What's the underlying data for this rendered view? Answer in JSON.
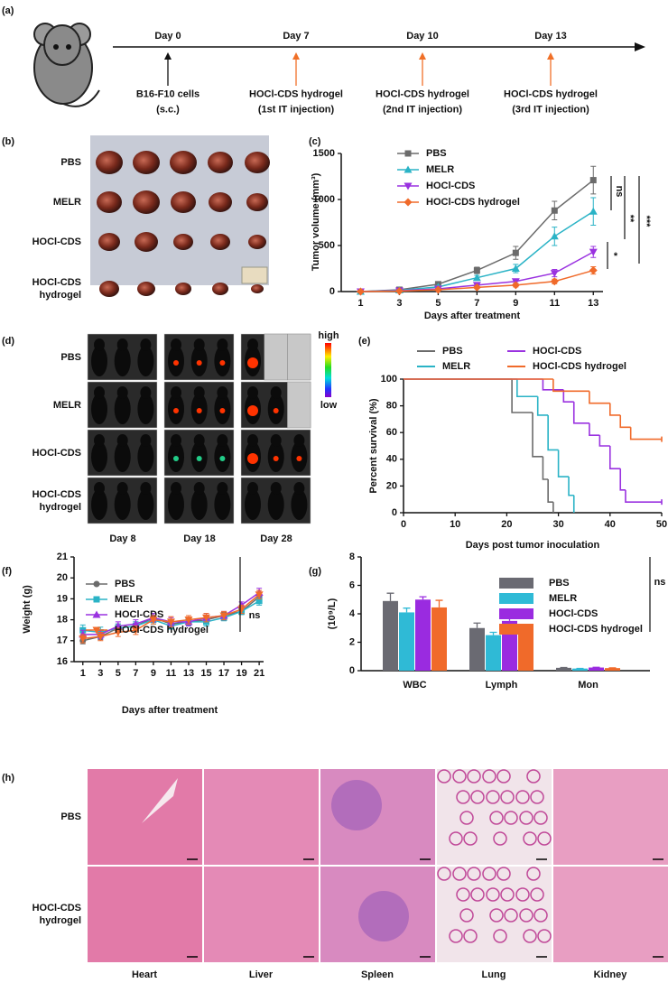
{
  "panel_labels": [
    "(a)",
    "(b)",
    "(c)",
    "(d)",
    "(e)",
    "(f)",
    "(g)",
    "(h)"
  ],
  "timeline": {
    "events": [
      {
        "day": "Day 0",
        "color": "#111111",
        "label": [
          "B16-F10 cells",
          "(s.c.)"
        ]
      },
      {
        "day": "Day 7",
        "color": "#f07028",
        "label": [
          "HOCl-CDS hydrogel",
          "(1st IT injection)"
        ]
      },
      {
        "day": "Day 10",
        "color": "#f07028",
        "label": [
          "HOCl-CDS hydrogel",
          "(2nd IT injection)"
        ]
      },
      {
        "day": "Day 13",
        "color": "#f07028",
        "label": [
          "HOCl-CDS hydrogel",
          "(3rd IT injection)"
        ]
      }
    ]
  },
  "tumor_photo": {
    "groups": [
      "PBS",
      "MELR",
      "HOCl-CDS",
      [
        "HOCl-CDS",
        "hydrogel"
      ]
    ]
  },
  "imaging": {
    "groups": [
      "PBS",
      "MELR",
      "HOCl-CDS",
      [
        "HOCl-CDS",
        "hydrogel"
      ]
    ],
    "days": [
      "Day 8",
      "Day 18",
      "Day 28"
    ],
    "colorbar": [
      "high",
      "low"
    ]
  },
  "histology": {
    "groups": [
      "PBS",
      [
        "HOCl-CDS",
        "hydrogel"
      ]
    ],
    "organs": [
      "Heart",
      "Liver",
      "Spleen",
      "Lung",
      "Kidney"
    ]
  },
  "chart_data": [
    {
      "type": "line",
      "xlabel": "Days after treatment",
      "ylabel": "Tumor volume (mm³)",
      "x": [
        1,
        3,
        5,
        7,
        9,
        11,
        13
      ],
      "xlim": [
        0,
        13.5
      ],
      "xticks": [
        1,
        3,
        5,
        7,
        9,
        11,
        13
      ],
      "ylim": [
        0,
        1500
      ],
      "yticks": [
        0,
        500,
        1000,
        1500
      ],
      "series": [
        {
          "name": "PBS",
          "color": "#6b6b6b",
          "marker": "square",
          "values": [
            0,
            20,
            80,
            230,
            420,
            880,
            1210
          ],
          "errors": [
            5,
            10,
            20,
            35,
            70,
            100,
            150
          ]
        },
        {
          "name": "MELR",
          "color": "#2ab3c6",
          "marker": "triangle",
          "values": [
            0,
            15,
            50,
            150,
            250,
            600,
            870
          ],
          "errors": [
            4,
            8,
            15,
            25,
            45,
            100,
            150
          ]
        },
        {
          "name": "HOCl-CDS",
          "color": "#9a32e0",
          "marker": "down",
          "values": [
            0,
            10,
            30,
            70,
            110,
            200,
            430
          ],
          "errors": [
            3,
            5,
            10,
            15,
            25,
            40,
            60
          ]
        },
        {
          "name": "HOCl-CDS hydrogel",
          "color": "#f06a2a",
          "marker": "diamond",
          "values": [
            0,
            5,
            20,
            45,
            70,
            110,
            230
          ],
          "errors": [
            2,
            4,
            8,
            12,
            20,
            25,
            40
          ]
        }
      ],
      "annotations": [
        "ns",
        "**",
        "***",
        "*"
      ]
    },
    {
      "type": "step",
      "xlabel": "Days post tumor inoculation",
      "ylabel": "Percent survival (%)",
      "xlim": [
        0,
        50
      ],
      "xticks": [
        0,
        10,
        20,
        30,
        40,
        50
      ],
      "ylim": [
        0,
        100
      ],
      "yticks": [
        0,
        20,
        40,
        60,
        80,
        100
      ],
      "series": [
        {
          "name": "PBS",
          "color": "#6b6b6b",
          "x": [
            0,
            21,
            25,
            27,
            28,
            29
          ],
          "values": [
            100,
            75,
            42,
            25,
            8,
            0
          ]
        },
        {
          "name": "MELR",
          "color": "#2ab3c6",
          "x": [
            0,
            22,
            26,
            28,
            30,
            32,
            33
          ],
          "values": [
            100,
            87,
            73,
            47,
            27,
            13,
            0
          ]
        },
        {
          "name": "HOCl-CDS",
          "color": "#9a32e0",
          "x": [
            0,
            27,
            31,
            33,
            36,
            38,
            40,
            42,
            43,
            50
          ],
          "values": [
            100,
            92,
            83,
            67,
            58,
            50,
            33,
            17,
            8,
            8
          ]
        },
        {
          "name": "HOCl-CDS hydrogel",
          "color": "#f06a2a",
          "x": [
            0,
            29,
            36,
            40,
            42,
            44,
            50
          ],
          "values": [
            100,
            91,
            82,
            73,
            64,
            55,
            55
          ]
        }
      ]
    },
    {
      "type": "line",
      "xlabel": "Days after treatment",
      "ylabel": "Weight (g)",
      "x": [
        1,
        3,
        5,
        7,
        9,
        11,
        13,
        15,
        17,
        19,
        21
      ],
      "xlim": [
        0,
        21.5
      ],
      "xticks": [
        1,
        3,
        5,
        7,
        9,
        11,
        13,
        15,
        17,
        19,
        21
      ],
      "ylim": [
        16,
        21
      ],
      "yticks": [
        16,
        17,
        18,
        19,
        20,
        21
      ],
      "series": [
        {
          "name": "PBS",
          "color": "#6b6b6b",
          "marker": "circle",
          "values": [
            17.0,
            17.2,
            17.6,
            17.7,
            18.1,
            17.8,
            17.9,
            18.0,
            18.2,
            18.4,
            19.1
          ],
          "errors": [
            0.15,
            0.15,
            0.2,
            0.2,
            0.2,
            0.2,
            0.15,
            0.2,
            0.15,
            0.15,
            0.2
          ]
        },
        {
          "name": "MELR",
          "color": "#2ab3c6",
          "marker": "square",
          "values": [
            17.5,
            17.4,
            17.6,
            17.7,
            18.0,
            17.7,
            17.9,
            17.9,
            18.1,
            18.4,
            18.9
          ],
          "errors": [
            0.25,
            0.25,
            0.2,
            0.2,
            0.2,
            0.15,
            0.15,
            0.2,
            0.15,
            0.15,
            0.2
          ]
        },
        {
          "name": "HOCl-CDS",
          "color": "#9a32e0",
          "marker": "triangle",
          "values": [
            17.3,
            17.3,
            17.7,
            17.8,
            18.1,
            17.9,
            17.9,
            18.1,
            18.2,
            18.7,
            19.3
          ],
          "errors": [
            0.2,
            0.2,
            0.2,
            0.2,
            0.2,
            0.2,
            0.2,
            0.2,
            0.2,
            0.15,
            0.2
          ]
        },
        {
          "name": "HOCl-CDS hydrogel",
          "color": "#f06a2a",
          "marker": "down",
          "values": [
            17.1,
            17.2,
            17.4,
            17.5,
            18.0,
            17.9,
            18.0,
            18.1,
            18.2,
            18.5,
            19.2
          ],
          "errors": [
            0.2,
            0.2,
            0.2,
            0.2,
            0.2,
            0.25,
            0.2,
            0.2,
            0.2,
            0.2,
            0.2
          ]
        }
      ],
      "annotations": [
        "ns"
      ]
    },
    {
      "type": "bar",
      "ylabel": "(10⁹/L)",
      "categories": [
        "WBC",
        "Lymph",
        "Mon"
      ],
      "ylim": [
        0,
        8
      ],
      "yticks": [
        0,
        2,
        4,
        6,
        8
      ],
      "series": [
        {
          "name": "PBS",
          "color": "#6a6a72",
          "values": [
            4.9,
            3.0,
            0.2
          ],
          "errors": [
            0.55,
            0.35,
            0.02
          ]
        },
        {
          "name": "MELR",
          "color": "#2fbad6",
          "values": [
            4.1,
            2.5,
            0.15
          ],
          "errors": [
            0.3,
            0.2,
            0.01
          ]
        },
        {
          "name": "HOCl-CDS",
          "color": "#9a2be0",
          "values": [
            5.0,
            3.5,
            0.22
          ],
          "errors": [
            0.2,
            0.2,
            0.02
          ]
        },
        {
          "name": "HOCl-CDS hydrogel",
          "color": "#f06a2a",
          "values": [
            4.45,
            2.6,
            0.18
          ],
          "errors": [
            0.5,
            0.45,
            0.02
          ]
        }
      ],
      "annotations": [
        "ns"
      ]
    }
  ]
}
